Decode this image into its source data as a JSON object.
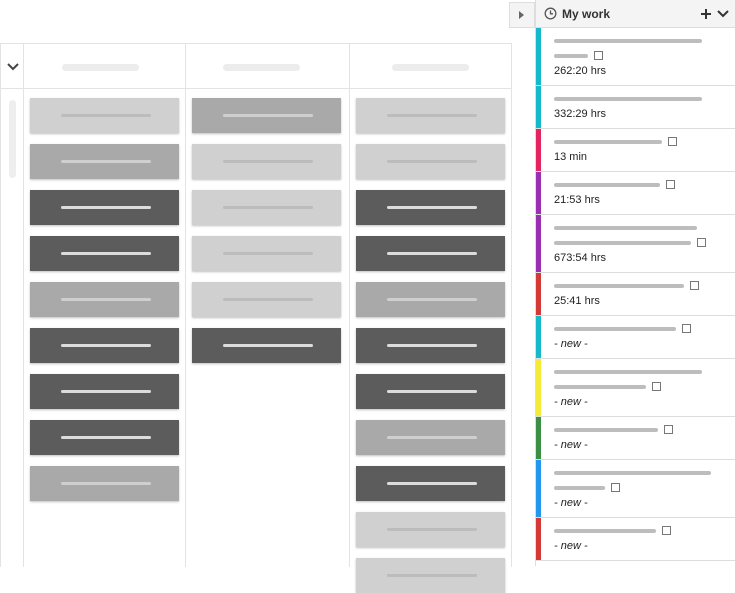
{
  "panel": {
    "title": "My work",
    "items": [
      {
        "color": "#16b9cc",
        "text": "262:20 hrs"
      },
      {
        "color": "#16b9cc",
        "text": "332:29 hrs"
      },
      {
        "color": "#e3245f",
        "text": "13 min"
      },
      {
        "color": "#9a30b0",
        "text": "21:53 hrs"
      },
      {
        "color": "#9a30b0",
        "text": "673:54 hrs"
      },
      {
        "color": "#d33a35",
        "text": "25:41 hrs"
      },
      {
        "color": "#16b9cc",
        "text": "- new -"
      },
      {
        "color": "#f5e93a",
        "text": "- new -"
      },
      {
        "color": "#3b8f43",
        "text": "- new -"
      },
      {
        "color": "#2396f0",
        "text": "- new -"
      },
      {
        "color": "#d33a35",
        "text": "- new -"
      }
    ]
  }
}
